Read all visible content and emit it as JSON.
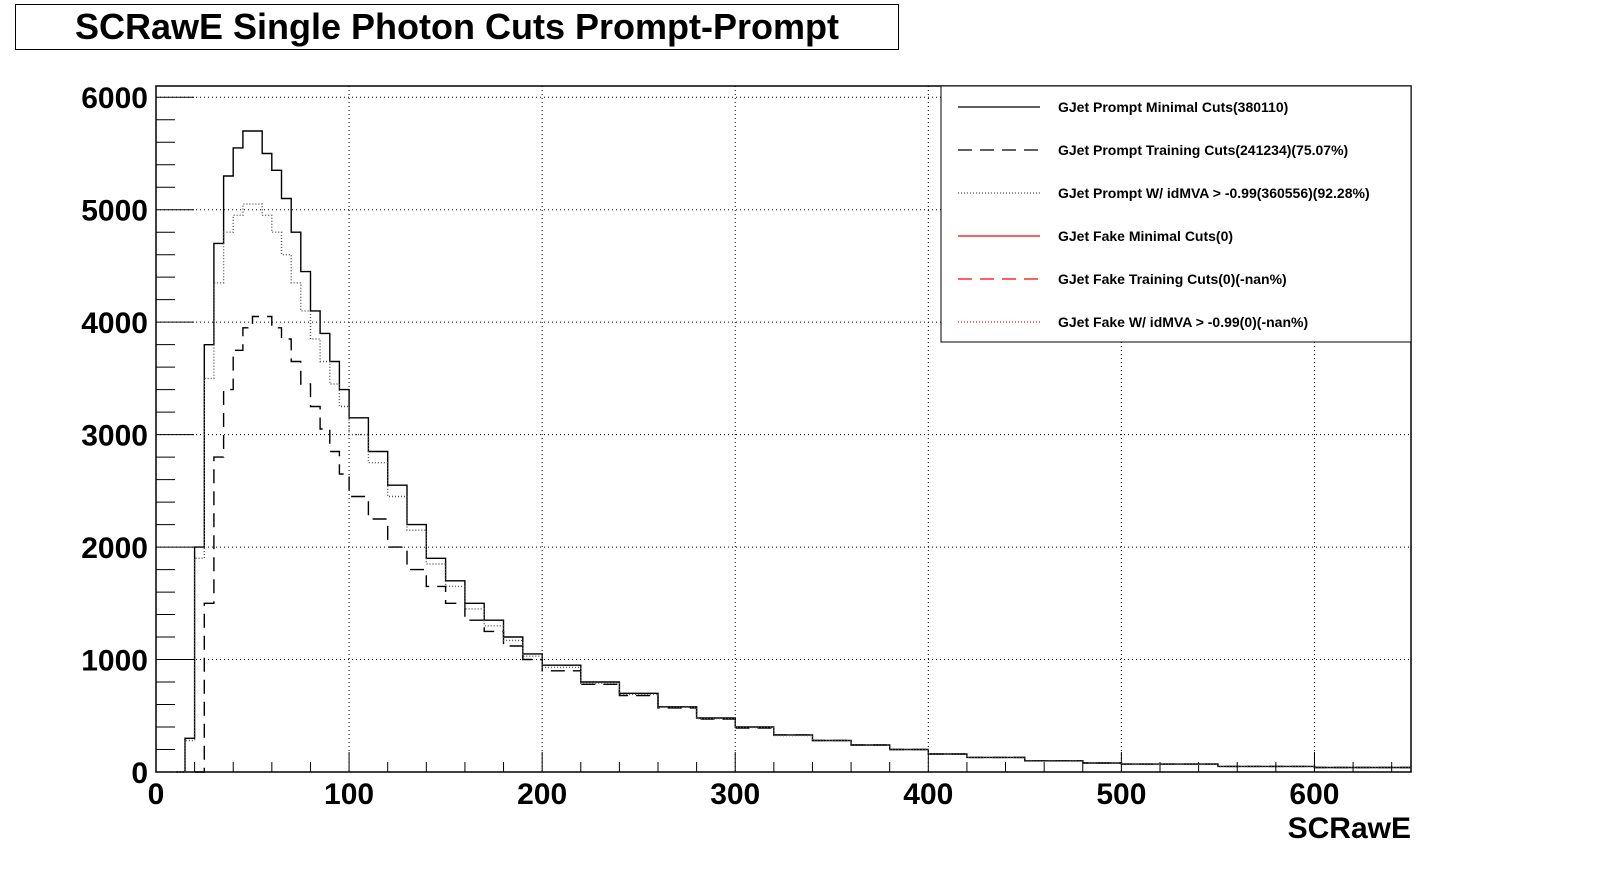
{
  "chart_data": {
    "type": "line",
    "title": "SCRawE Single Photon Cuts Prompt-Prompt",
    "xlabel": "SCRawE",
    "ylabel": "",
    "xlim": [
      0,
      650
    ],
    "ylim": [
      0,
      6100
    ],
    "x_ticks": [
      0,
      100,
      200,
      300,
      400,
      500,
      600
    ],
    "x_tick_labels": [
      "0",
      "100",
      "200",
      "300",
      "400",
      "500",
      "600"
    ],
    "y_ticks": [
      0,
      1000,
      2000,
      3000,
      4000,
      5000,
      6000
    ],
    "y_tick_labels": [
      "0",
      "1000",
      "2000",
      "3000",
      "4000",
      "5000",
      "6000"
    ],
    "grid": true,
    "legend_position": "top-right",
    "series": [
      {
        "name": "GJet Prompt Minimal Cuts(380110)",
        "color": "#000000",
        "style": "solid",
        "x": [
          10,
          15,
          20,
          25,
          30,
          35,
          40,
          45,
          50,
          55,
          60,
          65,
          70,
          75,
          80,
          85,
          90,
          95,
          100,
          110,
          120,
          130,
          140,
          150,
          160,
          170,
          180,
          190,
          200,
          220,
          240,
          260,
          280,
          300,
          320,
          340,
          360,
          380,
          400,
          420,
          450,
          480,
          500,
          550,
          600,
          650
        ],
        "y": [
          0,
          300,
          2000,
          3800,
          4700,
          5300,
          5550,
          5700,
          5700,
          5500,
          5350,
          5100,
          4800,
          4450,
          4100,
          3900,
          3650,
          3400,
          3150,
          2850,
          2550,
          2200,
          1900,
          1700,
          1500,
          1350,
          1200,
          1050,
          950,
          800,
          700,
          580,
          480,
          400,
          330,
          280,
          240,
          200,
          160,
          130,
          100,
          80,
          70,
          50,
          40,
          30
        ]
      },
      {
        "name": "GJet Prompt Training Cuts(241234)(75.07%)",
        "color": "#000000",
        "style": "dashed",
        "x": [
          20,
          25,
          30,
          35,
          40,
          45,
          50,
          55,
          60,
          65,
          70,
          75,
          80,
          85,
          90,
          95,
          100,
          110,
          120,
          130,
          140,
          150,
          160,
          170,
          180,
          190,
          200,
          220,
          240,
          260,
          280,
          300,
          320,
          340,
          360,
          380,
          400,
          420,
          450,
          480,
          500,
          550,
          600,
          650
        ],
        "y": [
          0,
          1500,
          2800,
          3400,
          3750,
          3950,
          4050,
          4050,
          3950,
          3850,
          3650,
          3450,
          3250,
          3050,
          2850,
          2650,
          2450,
          2250,
          2000,
          1800,
          1650,
          1500,
          1350,
          1250,
          1120,
          1000,
          900,
          780,
          680,
          570,
          470,
          390,
          330,
          280,
          240,
          200,
          160,
          130,
          100,
          80,
          70,
          50,
          40,
          30
        ]
      },
      {
        "name": "GJet Prompt W/ idMVA > -0.99(360556)(92.28%)",
        "color": "#555555",
        "style": "dotted",
        "x": [
          10,
          15,
          20,
          25,
          30,
          35,
          40,
          45,
          50,
          55,
          60,
          65,
          70,
          75,
          80,
          85,
          90,
          95,
          100,
          110,
          120,
          130,
          140,
          150,
          160,
          170,
          180,
          190,
          200,
          220,
          240,
          260,
          280,
          300,
          320,
          340,
          360,
          380,
          400,
          420,
          450,
          480,
          500,
          550,
          600,
          650
        ],
        "y": [
          0,
          280,
          1900,
          3500,
          4350,
          4800,
          4950,
          5050,
          5050,
          4950,
          4800,
          4600,
          4350,
          4100,
          3850,
          3650,
          3450,
          3250,
          3000,
          2750,
          2450,
          2150,
          1850,
          1650,
          1450,
          1300,
          1170,
          1030,
          930,
          790,
          690,
          575,
          475,
          395,
          325,
          278,
          238,
          198,
          158,
          128,
          98,
          78,
          68,
          48,
          38,
          28
        ]
      },
      {
        "name": "GJet Fake Minimal Cuts(0)",
        "color": "#ff0000",
        "style": "solid",
        "x": [],
        "y": []
      },
      {
        "name": "GJet Fake Training Cuts(0)(-nan%)",
        "color": "#ff0000",
        "style": "dashed",
        "x": [],
        "y": []
      },
      {
        "name": "GJet Fake W/ idMVA > -0.99(0)(-nan%)",
        "color": "#ff0000",
        "style": "dotted",
        "x": [],
        "y": []
      }
    ]
  }
}
